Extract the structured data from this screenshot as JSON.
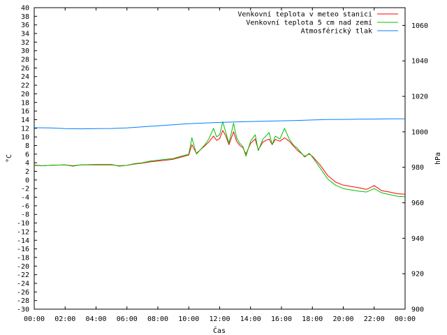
{
  "chart_data": {
    "type": "line",
    "title": "",
    "xlabel": "Čas",
    "ylabel_left": "°C",
    "ylabel_right": "hPa",
    "xlim": [
      0,
      24
    ],
    "ylim_left": [
      -30,
      40
    ],
    "ylim_right": [
      900,
      1070
    ],
    "x_ticks": [
      "00:00",
      "02:00",
      "04:00",
      "06:00",
      "08:00",
      "10:00",
      "12:00",
      "14:00",
      "16:00",
      "18:00",
      "20:00",
      "22:00",
      "00:00"
    ],
    "y_left_ticks": [
      40,
      38,
      36,
      34,
      32,
      30,
      28,
      26,
      24,
      22,
      20,
      18,
      16,
      14,
      12,
      10,
      8,
      6,
      4,
      2,
      0,
      -2,
      -4,
      -6,
      -8,
      -10,
      -12,
      -14,
      -16,
      -18,
      -20,
      -22,
      -24,
      -26,
      -28,
      -30
    ],
    "y_right_ticks": [
      1060,
      1040,
      1020,
      1000,
      980,
      960,
      940,
      920,
      900
    ],
    "legend_position": "top-right",
    "grid": false,
    "series": [
      {
        "name": "Venkovní teplota v meteo stanici",
        "axis": "left",
        "color": "#ff0000",
        "points": [
          [
            0,
            3.4
          ],
          [
            0.5,
            3.3
          ],
          [
            1,
            3.4
          ],
          [
            2,
            3.5
          ],
          [
            2.5,
            3.3
          ],
          [
            3,
            3.5
          ],
          [
            4,
            3.5
          ],
          [
            5,
            3.5
          ],
          [
            5.5,
            3.3
          ],
          [
            6,
            3.4
          ],
          [
            6.5,
            3.7
          ],
          [
            7,
            3.9
          ],
          [
            7.5,
            4.2
          ],
          [
            8,
            4.4
          ],
          [
            8.5,
            4.6
          ],
          [
            9,
            4.8
          ],
          [
            9.5,
            5.3
          ],
          [
            10,
            5.8
          ],
          [
            10.2,
            8.2
          ],
          [
            10.5,
            6.2
          ],
          [
            11,
            7.8
          ],
          [
            11.3,
            8.8
          ],
          [
            11.6,
            10.2
          ],
          [
            11.8,
            9.2
          ],
          [
            12,
            9.6
          ],
          [
            12.2,
            11.5
          ],
          [
            12.4,
            10.2
          ],
          [
            12.6,
            8.2
          ],
          [
            12.9,
            11.2
          ],
          [
            13.1,
            9.0
          ],
          [
            13.3,
            8.0
          ],
          [
            13.5,
            7.5
          ],
          [
            13.7,
            6.0
          ],
          [
            14,
            8.5
          ],
          [
            14.3,
            9.5
          ],
          [
            14.5,
            7.0
          ],
          [
            14.8,
            8.8
          ],
          [
            15,
            9.2
          ],
          [
            15.2,
            9.5
          ],
          [
            15.4,
            8.2
          ],
          [
            15.6,
            9.4
          ],
          [
            15.9,
            9.0
          ],
          [
            16.2,
            9.8
          ],
          [
            16.5,
            9.0
          ],
          [
            16.8,
            7.8
          ],
          [
            17,
            7.0
          ],
          [
            17.5,
            5.5
          ],
          [
            17.8,
            6.0
          ],
          [
            18,
            5.5
          ],
          [
            18.5,
            3.5
          ],
          [
            19,
            1.0
          ],
          [
            19.5,
            -0.5
          ],
          [
            20,
            -1.2
          ],
          [
            20.5,
            -1.5
          ],
          [
            21,
            -1.8
          ],
          [
            21.5,
            -2.2
          ],
          [
            22,
            -1.3
          ],
          [
            22.5,
            -2.5
          ],
          [
            23,
            -2.8
          ],
          [
            23.5,
            -3.2
          ],
          [
            24,
            -3.3
          ]
        ]
      },
      {
        "name": "Venkovní teplota 5 cm nad zemí",
        "axis": "left",
        "color": "#00c000",
        "points": [
          [
            0,
            3.5
          ],
          [
            0.5,
            3.3
          ],
          [
            1,
            3.4
          ],
          [
            2,
            3.5
          ],
          [
            2.5,
            3.2
          ],
          [
            3,
            3.5
          ],
          [
            4,
            3.6
          ],
          [
            5,
            3.6
          ],
          [
            5.5,
            3.2
          ],
          [
            6,
            3.4
          ],
          [
            6.5,
            3.8
          ],
          [
            7,
            4.0
          ],
          [
            7.5,
            4.4
          ],
          [
            8,
            4.6
          ],
          [
            8.5,
            4.8
          ],
          [
            9,
            5.0
          ],
          [
            9.5,
            5.5
          ],
          [
            10,
            6.0
          ],
          [
            10.2,
            9.8
          ],
          [
            10.5,
            6.0
          ],
          [
            11,
            8.0
          ],
          [
            11.3,
            9.5
          ],
          [
            11.6,
            12.0
          ],
          [
            11.8,
            10.0
          ],
          [
            12,
            10.5
          ],
          [
            12.2,
            13.5
          ],
          [
            12.4,
            11.0
          ],
          [
            12.6,
            8.5
          ],
          [
            12.9,
            13.2
          ],
          [
            13.1,
            9.8
          ],
          [
            13.3,
            8.5
          ],
          [
            13.5,
            7.8
          ],
          [
            13.7,
            5.5
          ],
          [
            14,
            9.0
          ],
          [
            14.3,
            10.5
          ],
          [
            14.5,
            6.8
          ],
          [
            14.8,
            9.5
          ],
          [
            15,
            10.2
          ],
          [
            15.2,
            11.0
          ],
          [
            15.4,
            8.2
          ],
          [
            15.6,
            10.2
          ],
          [
            15.9,
            9.5
          ],
          [
            16.2,
            12.0
          ],
          [
            16.5,
            9.5
          ],
          [
            16.8,
            8.0
          ],
          [
            17,
            7.5
          ],
          [
            17.5,
            5.3
          ],
          [
            17.8,
            6.2
          ],
          [
            18,
            5.3
          ],
          [
            18.5,
            2.8
          ],
          [
            19,
            0.2
          ],
          [
            19.5,
            -1.2
          ],
          [
            20,
            -2.0
          ],
          [
            20.5,
            -2.3
          ],
          [
            21,
            -2.6
          ],
          [
            21.5,
            -2.8
          ],
          [
            22,
            -2.0
          ],
          [
            22.5,
            -3.0
          ],
          [
            23,
            -3.4
          ],
          [
            23.5,
            -3.8
          ],
          [
            24,
            -3.9
          ]
        ]
      },
      {
        "name": "Atmosférický tlak",
        "axis": "right",
        "color": "#0080ff",
        "points": [
          [
            0,
            1002.3
          ],
          [
            1,
            1002.2
          ],
          [
            2,
            1001.8
          ],
          [
            3,
            1001.7
          ],
          [
            4,
            1001.8
          ],
          [
            5,
            1001.9
          ],
          [
            6,
            1002.2
          ],
          [
            7,
            1002.8
          ],
          [
            8,
            1003.4
          ],
          [
            9,
            1004.0
          ],
          [
            10,
            1004.6
          ],
          [
            11,
            1005.0
          ],
          [
            12,
            1005.3
          ],
          [
            13,
            1005.6
          ],
          [
            14,
            1005.8
          ],
          [
            15,
            1006.0
          ],
          [
            16,
            1006.2
          ],
          [
            17,
            1006.4
          ],
          [
            18,
            1006.7
          ],
          [
            19,
            1006.9
          ],
          [
            20,
            1007.0
          ],
          [
            21,
            1007.1
          ],
          [
            22,
            1007.2
          ],
          [
            23,
            1007.3
          ],
          [
            24,
            1007.3
          ]
        ]
      }
    ]
  }
}
